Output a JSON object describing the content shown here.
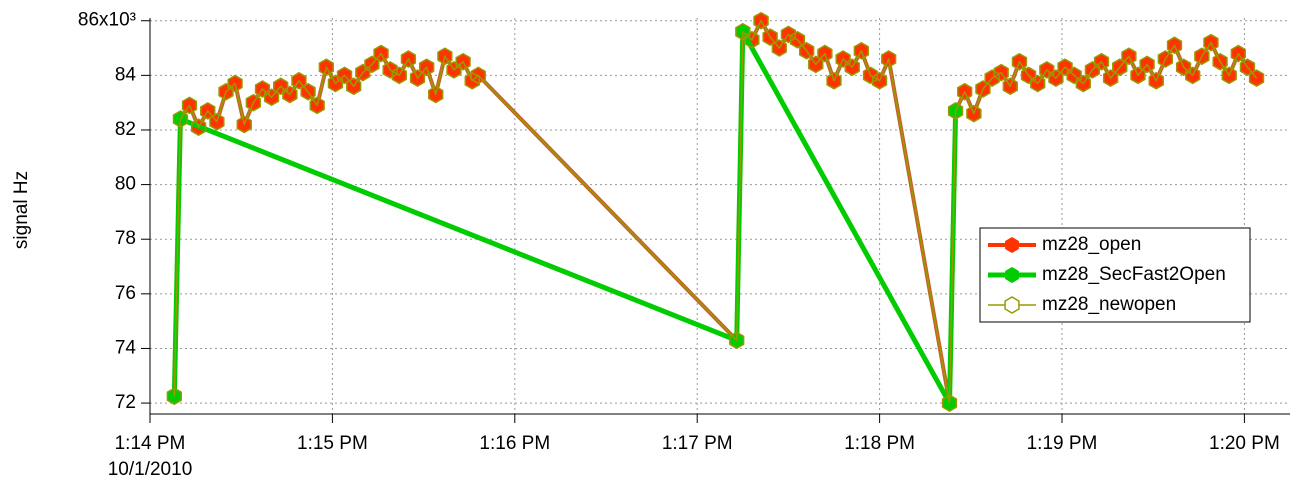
{
  "chart_data": {
    "type": "line",
    "y_label": "signal Hz",
    "x_date_label": "10/1/2010",
    "xlim": [
      "13:14:00",
      "13:20:15"
    ],
    "xticks": [
      {
        "value": "13:14:00",
        "label": "1:14 PM"
      },
      {
        "value": "13:15:00",
        "label": "1:15 PM"
      },
      {
        "value": "13:16:00",
        "label": "1:16 PM"
      },
      {
        "value": "13:17:00",
        "label": "1:17 PM"
      },
      {
        "value": "13:18:00",
        "label": "1:18 PM"
      },
      {
        "value": "13:19:00",
        "label": "1:19 PM"
      },
      {
        "value": "13:20:00",
        "label": "1:20 PM"
      }
    ],
    "ylim": [
      71600,
      86100
    ],
    "yticks": [
      {
        "value": 72000,
        "label": "72"
      },
      {
        "value": 74000,
        "label": "74"
      },
      {
        "value": 76000,
        "label": "76"
      },
      {
        "value": 78000,
        "label": "78"
      },
      {
        "value": 80000,
        "label": "80"
      },
      {
        "value": 82000,
        "label": "82"
      },
      {
        "value": 84000,
        "label": "84"
      },
      {
        "value": 86000,
        "label": "86x10³"
      }
    ],
    "grid": true,
    "legend": "right",
    "series": [
      {
        "name": "mz28_open",
        "color": "#ff3300",
        "marker": "filled",
        "width": 4,
        "x": [
          "13:14:08",
          "13:14:10",
          "13:14:13",
          "13:14:16",
          "13:14:19",
          "13:14:22",
          "13:14:25",
          "13:14:28",
          "13:14:31",
          "13:14:34",
          "13:14:37",
          "13:14:40",
          "13:14:43",
          "13:14:46",
          "13:14:49",
          "13:14:52",
          "13:14:55",
          "13:14:58",
          "13:15:01",
          "13:15:04",
          "13:15:07",
          "13:15:10",
          "13:15:13",
          "13:15:16",
          "13:15:19",
          "13:15:22",
          "13:15:25",
          "13:15:28",
          "13:15:31",
          "13:15:34",
          "13:15:37",
          "13:15:40",
          "13:15:43",
          "13:15:46",
          "13:15:48",
          "13:17:13",
          "13:17:15",
          "13:17:18",
          "13:17:21",
          "13:17:24",
          "13:17:27",
          "13:17:30",
          "13:17:33",
          "13:17:36",
          "13:17:39",
          "13:17:42",
          "13:17:45",
          "13:17:48",
          "13:17:51",
          "13:17:54",
          "13:17:57",
          "13:18:00",
          "13:18:03",
          "13:18:23",
          "13:18:25",
          "13:18:28",
          "13:18:31",
          "13:18:34",
          "13:18:37",
          "13:18:40",
          "13:18:43",
          "13:18:46",
          "13:18:49",
          "13:18:52",
          "13:18:55",
          "13:18:58",
          "13:19:01",
          "13:19:04",
          "13:19:07",
          "13:19:10",
          "13:19:13",
          "13:19:16",
          "13:19:19",
          "13:19:22",
          "13:19:25",
          "13:19:28",
          "13:19:31",
          "13:19:34",
          "13:19:37",
          "13:19:40",
          "13:19:43",
          "13:19:46",
          "13:19:49",
          "13:19:52",
          "13:19:55",
          "13:19:58",
          "13:20:01",
          "13:20:04"
        ],
        "values": [
          72250,
          82400,
          82900,
          82100,
          82700,
          82300,
          83400,
          83700,
          82200,
          83000,
          83500,
          83200,
          83600,
          83300,
          83800,
          83400,
          82900,
          84300,
          83700,
          84000,
          83600,
          84100,
          84400,
          84800,
          84200,
          84000,
          84600,
          83900,
          84300,
          83300,
          84700,
          84200,
          84500,
          83800,
          84000,
          74300,
          85600,
          85300,
          86000,
          85400,
          85000,
          85500,
          85300,
          84900,
          84400,
          84800,
          83800,
          84600,
          84300,
          84900,
          84000,
          83800,
          84600,
          72000,
          82700,
          83400,
          82600,
          83500,
          83900,
          84100,
          83600,
          84500,
          84000,
          83700,
          84200,
          83900,
          84300,
          84000,
          83700,
          84200,
          84500,
          83900,
          84300,
          84700,
          84000,
          84400,
          83800,
          84600,
          85100,
          84300,
          84000,
          84700,
          85200,
          84500,
          84000,
          84800,
          84300,
          83900
        ]
      },
      {
        "name": "mz28_SecFast2Open",
        "color": "#00cc00",
        "marker": "filled",
        "width": 5,
        "x": [
          "13:14:08",
          "13:14:10",
          "13:17:13",
          "13:17:15",
          "13:18:23",
          "13:18:25"
        ],
        "values": [
          72250,
          82400,
          74300,
          85600,
          72000,
          82700
        ]
      },
      {
        "name": "mz28_newopen",
        "color": "#999900",
        "marker": "hollow",
        "width": 1.5,
        "x": [
          "13:14:08",
          "13:14:10",
          "13:14:13",
          "13:14:16",
          "13:14:19",
          "13:14:22",
          "13:14:25",
          "13:14:28",
          "13:14:31",
          "13:14:34",
          "13:14:37",
          "13:14:40",
          "13:14:43",
          "13:14:46",
          "13:14:49",
          "13:14:52",
          "13:14:55",
          "13:14:58",
          "13:15:01",
          "13:15:04",
          "13:15:07",
          "13:15:10",
          "13:15:13",
          "13:15:16",
          "13:15:19",
          "13:15:22",
          "13:15:25",
          "13:15:28",
          "13:15:31",
          "13:15:34",
          "13:15:37",
          "13:15:40",
          "13:15:43",
          "13:15:46",
          "13:15:48",
          "13:17:13",
          "13:17:15",
          "13:17:18",
          "13:17:21",
          "13:17:24",
          "13:17:27",
          "13:17:30",
          "13:17:33",
          "13:17:36",
          "13:17:39",
          "13:17:42",
          "13:17:45",
          "13:17:48",
          "13:17:51",
          "13:17:54",
          "13:17:57",
          "13:18:00",
          "13:18:03",
          "13:18:23",
          "13:18:25",
          "13:18:28",
          "13:18:31",
          "13:18:34",
          "13:18:37",
          "13:18:40",
          "13:18:43",
          "13:18:46",
          "13:18:49",
          "13:18:52",
          "13:18:55",
          "13:18:58",
          "13:19:01",
          "13:19:04",
          "13:19:07",
          "13:19:10",
          "13:19:13",
          "13:19:16",
          "13:19:19",
          "13:19:22",
          "13:19:25",
          "13:19:28",
          "13:19:31",
          "13:19:34",
          "13:19:37",
          "13:19:40",
          "13:19:43",
          "13:19:46",
          "13:19:49",
          "13:19:52",
          "13:19:55",
          "13:19:58",
          "13:20:01",
          "13:20:04"
        ],
        "values": [
          72250,
          82400,
          82900,
          82100,
          82700,
          82300,
          83400,
          83700,
          82200,
          83000,
          83500,
          83200,
          83600,
          83300,
          83800,
          83400,
          82900,
          84300,
          83700,
          84000,
          83600,
          84100,
          84400,
          84800,
          84200,
          84000,
          84600,
          83900,
          84300,
          83300,
          84700,
          84200,
          84500,
          83800,
          84000,
          74300,
          85600,
          85300,
          86000,
          85400,
          85000,
          85500,
          85300,
          84900,
          84400,
          84800,
          83800,
          84600,
          84300,
          84900,
          84000,
          83800,
          84600,
          72000,
          82700,
          83400,
          82600,
          83500,
          83900,
          84100,
          83600,
          84500,
          84000,
          83700,
          84200,
          83900,
          84300,
          84000,
          83700,
          84200,
          84500,
          83900,
          84300,
          84700,
          84000,
          84400,
          83800,
          84600,
          85100,
          84300,
          84000,
          84700,
          85200,
          84500,
          84000,
          84800,
          84300,
          83900
        ]
      }
    ]
  }
}
